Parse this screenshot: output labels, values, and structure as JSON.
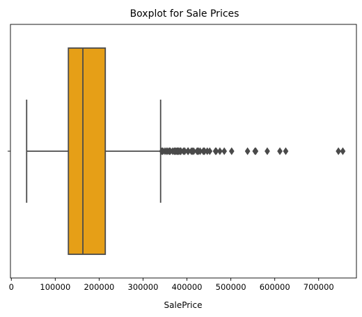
{
  "chart_data": {
    "type": "boxplot",
    "title": "Boxplot for Sale Prices",
    "xlabel": "SalePrice",
    "ylabel": "",
    "xlim": [
      -2000,
      786000
    ],
    "x_ticks": [
      0,
      100000,
      200000,
      300000,
      400000,
      500000,
      600000,
      700000
    ],
    "x_tick_labels": [
      "0",
      "100000",
      "200000",
      "300000",
      "400000",
      "500000",
      "600000",
      "700000"
    ],
    "y_tick_labels": [
      ""
    ],
    "grid": false,
    "box": {
      "whisker_low": 34900,
      "q1": 129975,
      "median": 163000,
      "q3": 214000,
      "whisker_high": 340000,
      "outliers": [
        342643,
        345000,
        345000,
        350000,
        350000,
        354000,
        355000,
        359100,
        360000,
        361919,
        367294,
        370878,
        372402,
        372500,
        375000,
        377426,
        378500,
        380000,
        381000,
        383970,
        385000,
        386250,
        392000,
        394432,
        394617,
        395000,
        402000,
        402861,
        403000,
        410000,
        412500,
        415298,
        423000,
        424870,
        426000,
        430000,
        437154,
        438780,
        440000,
        446261,
        451950,
        465000,
        466500,
        475000,
        485000,
        501837,
        538000,
        555000,
        556581,
        582933,
        611657,
        625000,
        745000,
        755000
      ]
    },
    "colors": {
      "box_fill": "#E69F17",
      "line": "#4A4A4A",
      "outlier": "#4A4A4A"
    }
  }
}
